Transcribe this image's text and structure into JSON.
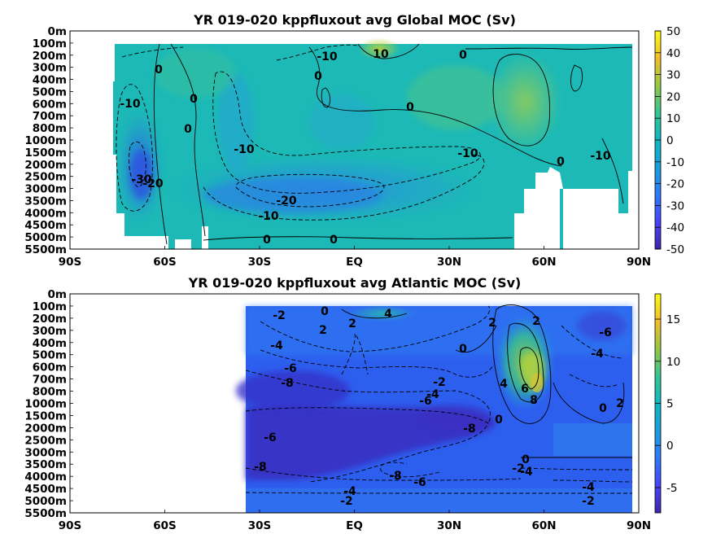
{
  "chart_data": [
    {
      "type": "heatmap",
      "title": "YR 019-020 kppfluxout avg  Global MOC (Sv)",
      "xlabel": "",
      "ylabel": "",
      "x_ticks": [
        "90S",
        "60S",
        "30S",
        "EQ",
        "30N",
        "60N",
        "90N"
      ],
      "x_values": [
        -90,
        -60,
        -30,
        0,
        30,
        60,
        90
      ],
      "y_ticks": [
        "0m",
        "100m",
        "200m",
        "300m",
        "400m",
        "500m",
        "600m",
        "700m",
        "800m",
        "1000m",
        "1500m",
        "2000m",
        "2500m",
        "3000m",
        "3500m",
        "4000m",
        "4500m",
        "5000m",
        "5500m"
      ],
      "colorbar_ticks": [
        "50",
        "40",
        "30",
        "20",
        "10",
        "0",
        "-10",
        "-20",
        "-30",
        "-40",
        "-50"
      ],
      "colorbar_values": [
        50,
        40,
        30,
        20,
        10,
        0,
        -10,
        -20,
        -30,
        -40,
        -50
      ],
      "colorbar_range": [
        -50,
        50
      ],
      "contour_labels": [
        "-10",
        "10",
        "0",
        "0",
        "-10",
        "0",
        "0",
        "0",
        "-10",
        "-10",
        "-10",
        "0",
        "0",
        "-30",
        "-20",
        "-20",
        "-10",
        "0",
        "0"
      ],
      "colormap": "parula",
      "land_color": "#ffffff"
    },
    {
      "type": "heatmap",
      "title": "YR 019-020 kppfluxout avg  Atlantic MOC (Sv)",
      "xlabel": "",
      "ylabel": "",
      "x_ticks": [
        "90S",
        "60S",
        "30S",
        "EQ",
        "30N",
        "60N",
        "90N"
      ],
      "x_values": [
        -90,
        -60,
        -30,
        0,
        30,
        60,
        90
      ],
      "y_ticks": [
        "0m",
        "100m",
        "200m",
        "300m",
        "400m",
        "500m",
        "600m",
        "700m",
        "800m",
        "1000m",
        "1500m",
        "2000m",
        "2500m",
        "3000m",
        "3500m",
        "4000m",
        "4500m",
        "5000m",
        "5500m"
      ],
      "colorbar_ticks": [
        "15",
        "10",
        "5",
        "0",
        "-5"
      ],
      "colorbar_values": [
        15,
        10,
        5,
        0,
        -5
      ],
      "colorbar_range": [
        -8,
        18
      ],
      "contour_labels": [
        "-2",
        "0",
        "4",
        "2",
        "2",
        "2",
        "0",
        "2",
        "-6",
        "-4",
        "-6",
        "0",
        "-4",
        "-8",
        "-2",
        "-4",
        "4",
        "6",
        "8",
        "-6",
        "-8",
        "0",
        "2",
        "-6",
        "-8",
        "-8",
        "-6",
        "0",
        "-2",
        "-4",
        "-4",
        "-4",
        "-2",
        "-2"
      ],
      "colormap": "parula",
      "land_color": "#ffffff"
    }
  ]
}
